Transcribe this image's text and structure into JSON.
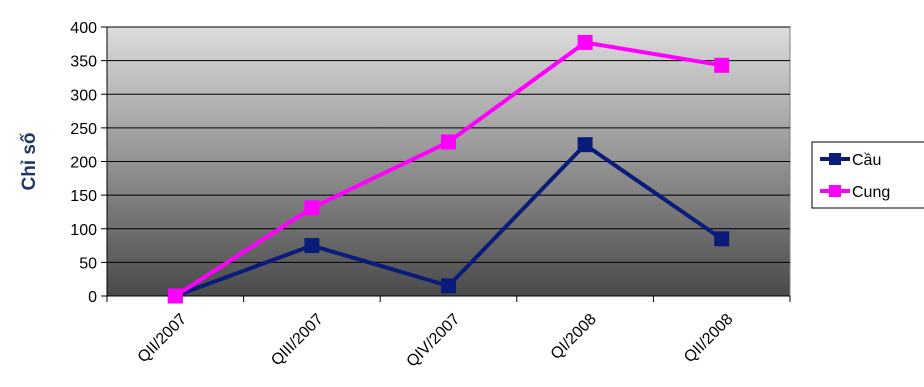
{
  "chart_data": {
    "type": "line",
    "title": "",
    "xlabel": "",
    "ylabel": "Chỉ số",
    "categories": [
      "QII/2007",
      "QIII/2007",
      "QIV/2007",
      "QI/2008",
      "QII/2008"
    ],
    "ylim": [
      0,
      400
    ],
    "yticks": [
      0,
      50,
      100,
      150,
      200,
      250,
      300,
      350,
      400
    ],
    "grid": true,
    "legend_position": "right",
    "series": [
      {
        "name": "Cầu",
        "values": [
          0,
          75,
          15,
          225,
          85
        ],
        "color": "#0b1b7a",
        "marker": "square"
      },
      {
        "name": "Cung",
        "values": [
          0,
          131,
          229,
          377,
          343
        ],
        "color": "#ff00ff",
        "marker": "square"
      }
    ]
  }
}
